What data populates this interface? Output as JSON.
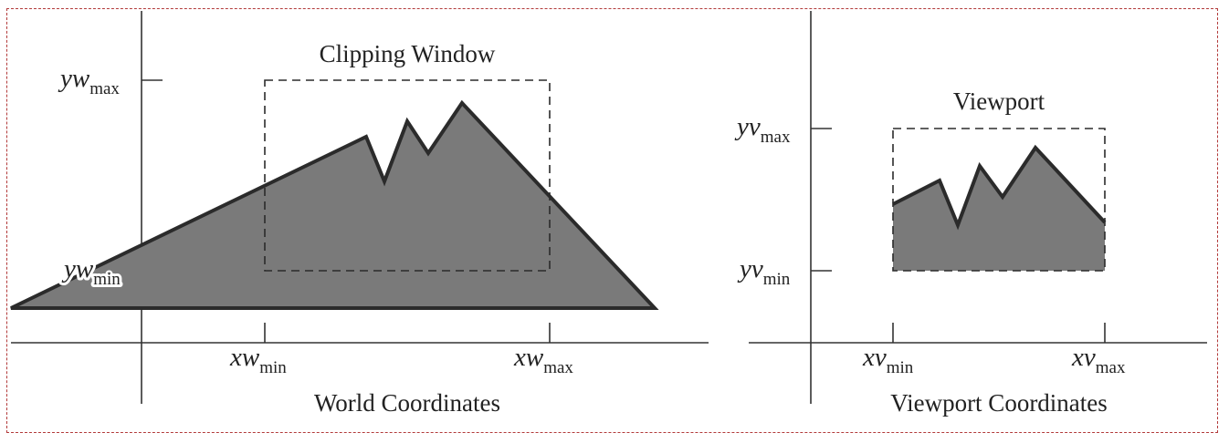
{
  "world": {
    "clip_title": "Clipping Window",
    "caption": "World Coordinates",
    "yw_max": {
      "base": "yw",
      "sub": "max"
    },
    "yw_min": {
      "base": "yw",
      "sub": "min"
    },
    "xw_min": {
      "base": "xw",
      "sub": "min"
    },
    "xw_max": {
      "base": "xw",
      "sub": "max"
    }
  },
  "viewport": {
    "title": "Viewport",
    "caption": "Viewport Coordinates",
    "yv_max": {
      "base": "yv",
      "sub": "max"
    },
    "yv_min": {
      "base": "yv",
      "sub": "min"
    },
    "xv_min": {
      "base": "xv",
      "sub": "min"
    },
    "xv_max": {
      "base": "xv",
      "sub": "max"
    }
  },
  "colors": {
    "shape_fill": "#7a7a7a",
    "shape_stroke": "#2b2b2b",
    "axis": "#333333",
    "frame": "#b23a3a"
  }
}
